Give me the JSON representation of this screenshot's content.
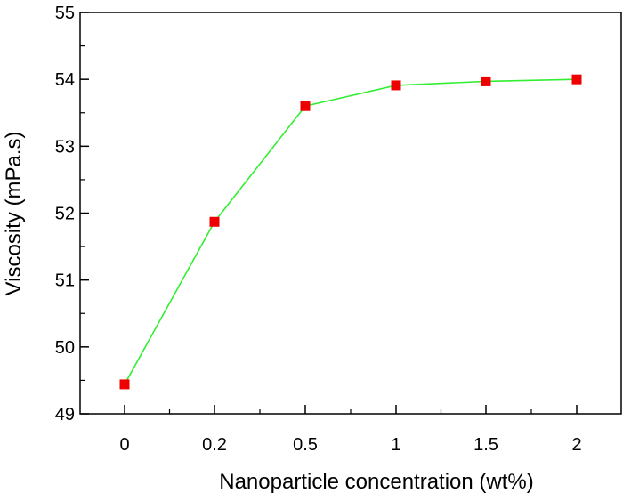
{
  "chart_data": {
    "type": "line",
    "title": "",
    "xlabel": "Nanoparticle concentration  (wt%)",
    "ylabel": "Viscosity (mPa.s)",
    "categories": [
      "0",
      "0.2",
      "0.5",
      "1",
      "1.5",
      "2"
    ],
    "series": [
      {
        "values": [
          49.44,
          51.87,
          53.6,
          53.91,
          53.97,
          54.0
        ]
      }
    ],
    "ylim": [
      49,
      55
    ],
    "yticks": [
      "49",
      "50",
      "51",
      "52",
      "53",
      "54",
      "55"
    ],
    "grid": false,
    "legend": "none",
    "colors": {
      "line": "#33ee33",
      "marker": "#ee0000",
      "axis": "#000000"
    }
  }
}
